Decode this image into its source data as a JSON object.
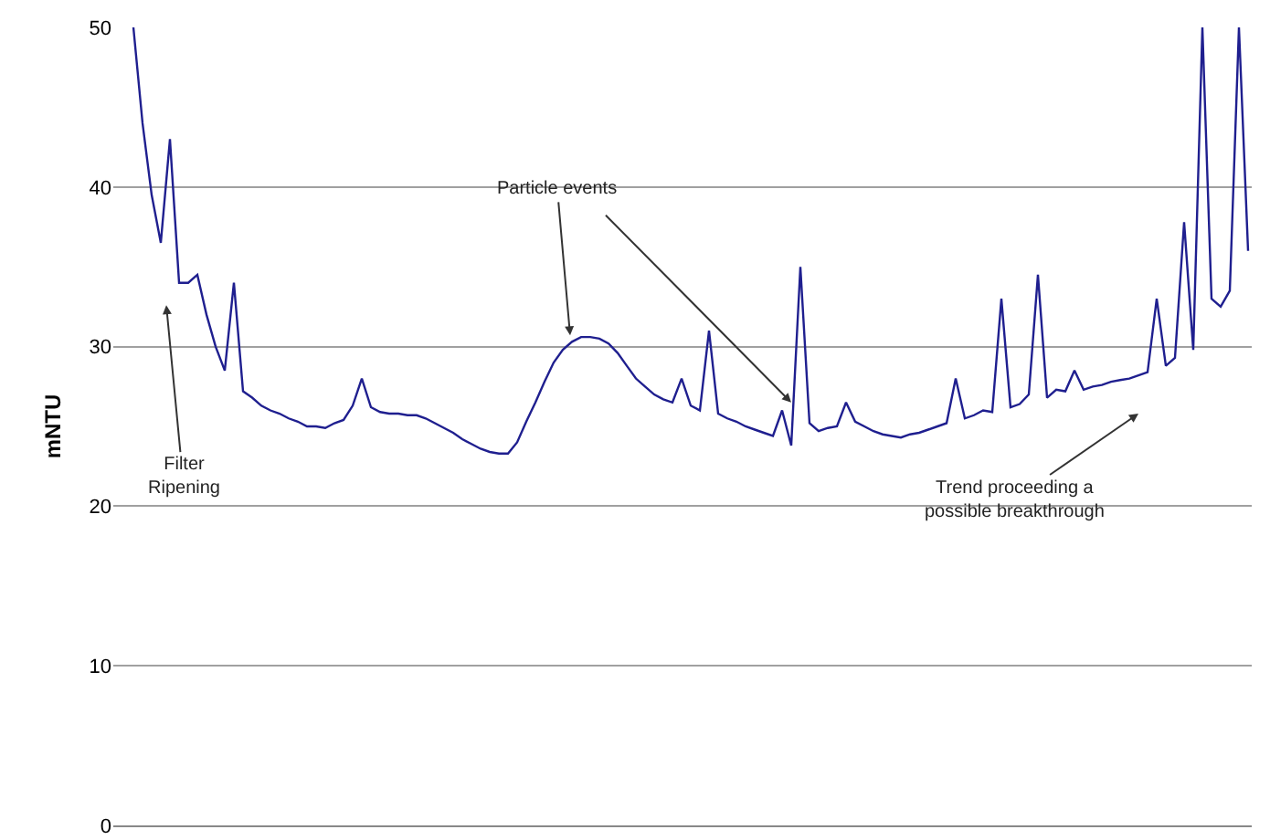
{
  "chart_data": {
    "type": "line",
    "ylabel": "mNTU",
    "categories": [
      null,
      null,
      null,
      null,
      null,
      null,
      null,
      null,
      null,
      null,
      null,
      null,
      null,
      null,
      null,
      null,
      null,
      null,
      null,
      null,
      null,
      null,
      null,
      null,
      null,
      null,
      null,
      null,
      null,
      null,
      null,
      null,
      null,
      null,
      null,
      null,
      null,
      null,
      null,
      null,
      null,
      null,
      null,
      null,
      null,
      null,
      null,
      null,
      null,
      null,
      null,
      null,
      null,
      null,
      null,
      null,
      null,
      null,
      null,
      null,
      null,
      null,
      null,
      null,
      null,
      null,
      null,
      null,
      null,
      null,
      null,
      null,
      null,
      null,
      null,
      null,
      null,
      null,
      null,
      null,
      null,
      null,
      null,
      null,
      null,
      null,
      null,
      null,
      null,
      null,
      null,
      null,
      null,
      null,
      null,
      null,
      null,
      null,
      null,
      null,
      null,
      null,
      null,
      null,
      null,
      null,
      null,
      null,
      null,
      null,
      null,
      null,
      null,
      null,
      null,
      null,
      null,
      null,
      null,
      null,
      null,
      null,
      null
    ],
    "series": [
      {
        "color": "#1f1f8f",
        "values": [
          50,
          44,
          39.5,
          36.5,
          43,
          34,
          34,
          34.5,
          32,
          30,
          28.5,
          34,
          27.2,
          26.8,
          26.3,
          26,
          25.8,
          25.5,
          25.3,
          25,
          25,
          24.9,
          25.2,
          25.4,
          26.3,
          28,
          26.2,
          25.9,
          25.8,
          25.8,
          25.7,
          25.7,
          25.5,
          25.2,
          24.9,
          24.6,
          24.2,
          23.9,
          23.6,
          23.4,
          23.3,
          23.3,
          24,
          25.3,
          26.5,
          27.8,
          29,
          29.8,
          30.3,
          30.6,
          30.6,
          30.5,
          30.2,
          29.6,
          28.8,
          28,
          27.5,
          27,
          26.7,
          26.5,
          28,
          26.3,
          26,
          31,
          25.8,
          25.5,
          25.3,
          25,
          24.8,
          24.6,
          24.4,
          26,
          23.8,
          35,
          25.2,
          24.7,
          24.9,
          25,
          26.5,
          25.3,
          25,
          24.7,
          24.5,
          24.4,
          24.3,
          24.5,
          24.6,
          24.8,
          25,
          25.2,
          28,
          25.5,
          25.7,
          26,
          25.9,
          33,
          26.2,
          26.4,
          27,
          34.5,
          26.8,
          27.3,
          27.2,
          28.5,
          27.3,
          27.5,
          27.6,
          27.8,
          27.9,
          28,
          28.2,
          28.4,
          33,
          28.8,
          29.3,
          37.8,
          29.8,
          50,
          33,
          32.5,
          33.5,
          50,
          36
        ]
      }
    ],
    "ylim": [
      0,
      50
    ],
    "yticks": [
      0,
      10,
      20,
      30,
      40,
      50
    ],
    "grid": "y",
    "tick_labels": "y",
    "marker": "none",
    "line_style": "solid",
    "annotations": [
      "Filter\nRipening",
      "Particle events",
      "Trend proceeding a\npossible breakthrough"
    ]
  }
}
